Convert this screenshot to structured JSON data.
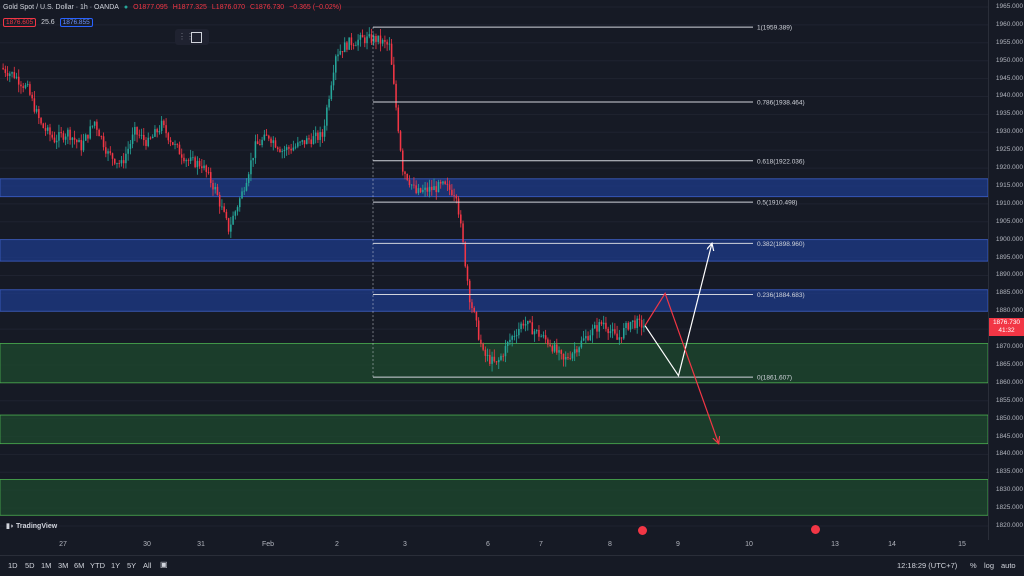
{
  "legend": {
    "symbol": "Gold Spot / U.S. Dollar · 1h · OANDA",
    "open": "O1877.095",
    "high": "H1877.325",
    "low": "L1876.070",
    "close": "C1876.730",
    "change": "−0.365 (−0.02%)",
    "sell_price": "1876.605",
    "spread": "25.6",
    "buy_price": "1876.855"
  },
  "price_axis": {
    "ticks": [
      "1965.000",
      "1960.000",
      "1955.000",
      "1950.000",
      "1945.000",
      "1940.000",
      "1935.000",
      "1930.000",
      "1925.000",
      "1920.000",
      "1915.000",
      "1910.000",
      "1905.000",
      "1900.000",
      "1895.000",
      "1890.000",
      "1885.000",
      "1880.000",
      "1875.000",
      "1870.000",
      "1865.000",
      "1860.000",
      "1855.000",
      "1850.000",
      "1845.000",
      "1840.000",
      "1835.000",
      "1830.000",
      "1825.000",
      "1820.000"
    ],
    "last_price": "1876.730",
    "countdown": "41:32"
  },
  "time_axis": {
    "ticks": [
      "27",
      "30",
      "31",
      "Feb",
      "2",
      "3",
      "6",
      "7",
      "8",
      "9",
      "10",
      "13",
      "14",
      "15"
    ]
  },
  "fib_levels": [
    "1(1959.389)",
    "0.786(1938.464)",
    "0.618(1922.036)",
    "0.5(1910.498)",
    "0.382(1898.960)",
    "0.236(1884.683)",
    "0(1861.607)"
  ],
  "timeframes": [
    "1D",
    "5D",
    "1M",
    "3M",
    "6M",
    "YTD",
    "1Y",
    "5Y",
    "All"
  ],
  "bottom_right": {
    "clock": "12:18:29 (UTC+7)",
    "percent": "%",
    "log": "log",
    "auto": "auto"
  },
  "branding": "TradingView",
  "colors": {
    "background": "#161a25",
    "up": "#26a69a",
    "down": "#f23645",
    "blue_zone": "#1e3b8a",
    "green_zone": "#1e4a2e",
    "fib_line": "#d1d4dc"
  },
  "chart_data": {
    "type": "candlestick",
    "symbol": "Gold Spot / U.S. Dollar",
    "interval": "1h",
    "ylim": [
      1820,
      1965
    ],
    "fib_retracement": [
      {
        "ratio": 1,
        "price": 1959.389
      },
      {
        "ratio": 0.786,
        "price": 1938.464
      },
      {
        "ratio": 0.618,
        "price": 1922.036
      },
      {
        "ratio": 0.5,
        "price": 1910.498
      },
      {
        "ratio": 0.382,
        "price": 1898.96
      },
      {
        "ratio": 0.236,
        "price": 1884.683
      },
      {
        "ratio": 0,
        "price": 1861.607
      }
    ],
    "zones": [
      {
        "type": "supply",
        "from": 1912,
        "to": 1917
      },
      {
        "type": "supply",
        "from": 1894,
        "to": 1900
      },
      {
        "type": "supply",
        "from": 1880,
        "to": 1886
      },
      {
        "type": "demand",
        "from": 1860,
        "to": 1871
      },
      {
        "type": "demand",
        "from": 1843,
        "to": 1851
      },
      {
        "type": "demand",
        "from": 1823,
        "to": 1833
      }
    ],
    "path": [
      {
        "x": 0,
        "y": 1948
      },
      {
        "x": 1,
        "y": 1946
      },
      {
        "x": 2,
        "y": 1942
      },
      {
        "x": 3,
        "y": 1932
      },
      {
        "x": 4,
        "y": 1928
      },
      {
        "x": 5,
        "y": 1930
      },
      {
        "x": 6,
        "y": 1926
      },
      {
        "x": 7,
        "y": 1933
      },
      {
        "x": 8,
        "y": 1924
      },
      {
        "x": 9,
        "y": 1921
      },
      {
        "x": 10,
        "y": 1930
      },
      {
        "x": 11,
        "y": 1927
      },
      {
        "x": 12,
        "y": 1932
      },
      {
        "x": 13,
        "y": 1926
      },
      {
        "x": 14,
        "y": 1922
      },
      {
        "x": 15,
        "y": 1921
      },
      {
        "x": 16,
        "y": 1914
      },
      {
        "x": 17,
        "y": 1903
      },
      {
        "x": 18,
        "y": 1913
      },
      {
        "x": 19,
        "y": 1926
      },
      {
        "x": 20,
        "y": 1929
      },
      {
        "x": 21,
        "y": 1925
      },
      {
        "x": 22,
        "y": 1926
      },
      {
        "x": 23,
        "y": 1928
      },
      {
        "x": 24,
        "y": 1929
      },
      {
        "x": 25,
        "y": 1952
      },
      {
        "x": 26,
        "y": 1955
      },
      {
        "x": 27,
        "y": 1956
      },
      {
        "x": 28,
        "y": 1956
      },
      {
        "x": 29,
        "y": 1954
      },
      {
        "x": 30,
        "y": 1920
      },
      {
        "x": 31,
        "y": 1913
      },
      {
        "x": 32,
        "y": 1914
      },
      {
        "x": 33,
        "y": 1915
      },
      {
        "x": 34,
        "y": 1913
      },
      {
        "x": 35,
        "y": 1884
      },
      {
        "x": 36,
        "y": 1868
      },
      {
        "x": 37,
        "y": 1865
      },
      {
        "x": 38,
        "y": 1872
      },
      {
        "x": 39,
        "y": 1877
      },
      {
        "x": 40,
        "y": 1874
      },
      {
        "x": 41,
        "y": 1871
      },
      {
        "x": 42,
        "y": 1866
      },
      {
        "x": 43,
        "y": 1870
      },
      {
        "x": 44,
        "y": 1874
      },
      {
        "x": 45,
        "y": 1877
      },
      {
        "x": 46,
        "y": 1872
      },
      {
        "x": 47,
        "y": 1877
      },
      {
        "x": 48,
        "y": 1876
      }
    ],
    "projections": [
      {
        "color": "white",
        "points": [
          [
            48,
            1876
          ],
          [
            50.5,
            1862
          ],
          [
            53,
            1899
          ]
        ]
      },
      {
        "color": "red",
        "points": [
          [
            48,
            1876
          ],
          [
            49.5,
            1885
          ],
          [
            53.5,
            1843
          ]
        ]
      }
    ]
  }
}
